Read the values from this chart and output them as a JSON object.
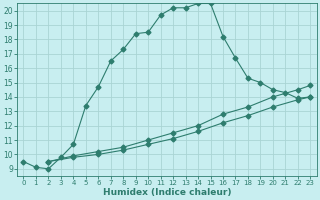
{
  "title": "",
  "xlabel": "Humidex (Indice chaleur)",
  "bg_color": "#c8eef0",
  "grid_color": "#aad4d4",
  "line_color": "#2e7d6e",
  "xlim": [
    -0.5,
    23.5
  ],
  "ylim": [
    8.5,
    20.5
  ],
  "xticks": [
    0,
    1,
    2,
    3,
    4,
    5,
    6,
    7,
    8,
    9,
    10,
    11,
    12,
    13,
    14,
    15,
    16,
    17,
    18,
    19,
    20,
    21,
    22,
    23
  ],
  "yticks": [
    9,
    10,
    11,
    12,
    13,
    14,
    15,
    16,
    17,
    18,
    19,
    20
  ],
  "line1_x": [
    0,
    1,
    2,
    3,
    4,
    5,
    6,
    7,
    8,
    9,
    10,
    11,
    12,
    13,
    14,
    15,
    16,
    17,
    18,
    19,
    20,
    21,
    22,
    23
  ],
  "line1_y": [
    9.5,
    9.1,
    9.0,
    9.8,
    10.7,
    13.4,
    14.7,
    16.5,
    17.3,
    18.4,
    18.5,
    19.7,
    20.2,
    20.2,
    20.5,
    20.5,
    18.2,
    16.7,
    15.3,
    15.0,
    14.5,
    14.3,
    13.9,
    14.0
  ],
  "line2_x": [
    2,
    4,
    6,
    8,
    10,
    12,
    14,
    16,
    18,
    20,
    22,
    23
  ],
  "line2_y": [
    9.5,
    9.8,
    10.0,
    10.3,
    10.7,
    11.1,
    11.6,
    12.2,
    12.7,
    13.3,
    13.8,
    14.0
  ],
  "line3_x": [
    2,
    4,
    6,
    8,
    10,
    12,
    14,
    16,
    18,
    20,
    22,
    23
  ],
  "line3_y": [
    9.5,
    9.9,
    10.2,
    10.5,
    11.0,
    11.5,
    12.0,
    12.8,
    13.3,
    14.0,
    14.5,
    14.8
  ],
  "markersize": 2.5
}
